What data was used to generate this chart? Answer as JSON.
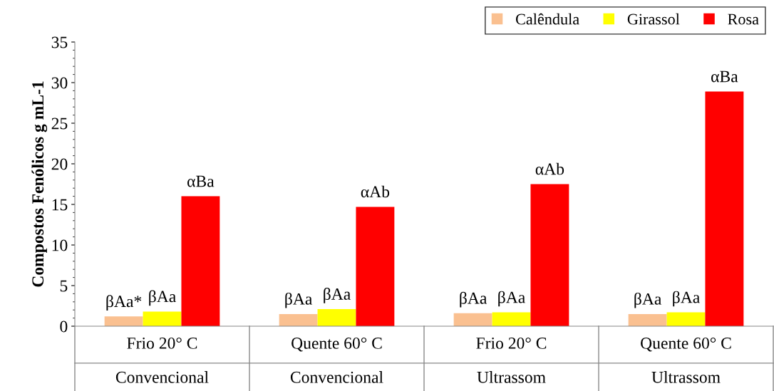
{
  "chart_data": {
    "type": "bar",
    "ylabel": "Compostos Fenólicos g mL-1",
    "categories": [
      "Frio 20° C\nConvencional",
      "Quente 60° C\nConvencional",
      "Frio 20° C\nUltrassom",
      "Quente 60° C\nUltrassom"
    ],
    "series": [
      {
        "name": "Calêndula",
        "color": "#fac090",
        "values": [
          1.2,
          1.5,
          1.6,
          1.5
        ],
        "value_labels": [
          "βAa*",
          "βAa",
          "βAa",
          "βAa"
        ]
      },
      {
        "name": "Girassol",
        "color": "#ffff00",
        "values": [
          1.8,
          2.1,
          1.7,
          1.7
        ],
        "value_labels": [
          "βAa",
          "βAa",
          "βAa",
          "βAa"
        ]
      },
      {
        "name": "Rosa",
        "color": "#ff0000",
        "values": [
          16.0,
          14.7,
          17.5,
          28.9
        ],
        "value_labels": [
          "αBa",
          "αAb",
          "αAb",
          "αBa"
        ]
      }
    ],
    "ylim": [
      0,
      35
    ],
    "yticks": [
      0,
      5,
      10,
      15,
      20,
      25,
      30,
      35
    ],
    "grid": false,
    "legend": "top right"
  }
}
